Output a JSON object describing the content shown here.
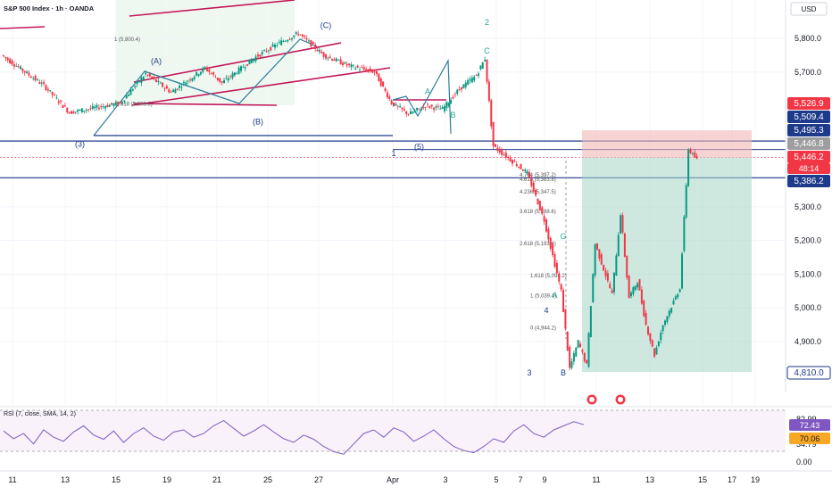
{
  "header": {
    "title": "S&P 500 Index · 1h · OANDA",
    "currency": "USD"
  },
  "colors": {
    "up": "#089981",
    "down": "#f23645",
    "trendline": "#c2185b",
    "hline": "#1e3a8a",
    "wave_label": "#1e3a8a",
    "wave_label_green": "#26a69a",
    "fib": "#4a6fa5",
    "highlight": "#e8f5e9",
    "rsi_line": "#7e57c2",
    "rsi_ma": "#f9a825"
  },
  "chart_data": {
    "type": "candlestick",
    "title": "S&P 500 Index · 1h · OANDA",
    "currency": "USD",
    "y_ticks": [
      5800,
      5700,
      5300,
      5200,
      5100,
      5000,
      4900
    ],
    "y_tick_labels": [
      "5,800.0",
      "5,700.0",
      "5,300.0",
      "5,200.0",
      "5,100.0",
      "5,000.0",
      "4,900.0"
    ],
    "x_tick_labels": [
      "11",
      "13",
      "15",
      "19",
      "21",
      "25",
      "27",
      "Apr",
      "3",
      "5",
      "7",
      "9",
      "11",
      "13",
      "15",
      "17",
      "19"
    ],
    "price_path": [
      [
        0,
        5750
      ],
      [
        5,
        5660
      ],
      [
        8,
        5580
      ],
      [
        14,
        5608
      ],
      [
        17,
        5695
      ],
      [
        20,
        5640
      ],
      [
        24,
        5712
      ],
      [
        26,
        5668
      ],
      [
        30,
        5745
      ],
      [
        33,
        5790
      ],
      [
        35,
        5815
      ],
      [
        38,
        5750
      ],
      [
        41,
        5718
      ],
      [
        44,
        5700
      ],
      [
        46,
        5608
      ],
      [
        48,
        5575
      ],
      [
        50,
        5600
      ],
      [
        52,
        5590
      ],
      [
        54,
        5650
      ],
      [
        56,
        5690
      ],
      [
        57,
        5740
      ],
      [
        58,
        5480
      ],
      [
        62,
        5400
      ],
      [
        64,
        5260
      ],
      [
        66,
        5050
      ],
      [
        67,
        4820
      ],
      [
        68,
        4900
      ],
      [
        69,
        4830
      ],
      [
        70,
        5190
      ],
      [
        72,
        5040
      ],
      [
        73,
        5280
      ],
      [
        74,
        5030
      ],
      [
        75,
        5080
      ],
      [
        76,
        4950
      ],
      [
        77,
        4860
      ],
      [
        78,
        4950
      ],
      [
        80,
        5060
      ],
      [
        81,
        5470
      ],
      [
        82,
        5440
      ]
    ],
    "price_levels": [
      {
        "value": 5526.9,
        "label": "5,526.9",
        "style": "red-badge"
      },
      {
        "value": 5509.4,
        "label": "5,509.4",
        "style": "blue-badge"
      },
      {
        "value": 5495.3,
        "label": "5,495.3",
        "style": "blue-badge"
      },
      {
        "value": 5446.8,
        "label": "5,446.8",
        "style": "gray-badge"
      },
      {
        "value": 5446.2,
        "label": "5,446.2",
        "style": "red-badge"
      },
      {
        "value": 5386.2,
        "label": "5,386.2",
        "style": "blue-badge"
      },
      {
        "value": 4810.0,
        "label": "4,810.0",
        "style": "outline-badge"
      }
    ],
    "countdown": "48:14",
    "position_box": {
      "entry": 5446.2,
      "stop": 5526.9,
      "target": 4810.0
    },
    "wave_labels": [
      {
        "label": "(A)",
        "x": 18,
        "y": 5725
      },
      {
        "label": "(B)",
        "x": 30,
        "y": 5545
      },
      {
        "label": "(C)",
        "x": 38,
        "y": 5830
      },
      {
        "label": "(3)",
        "x": 9,
        "y": 5478
      },
      {
        "label": "(5)",
        "x": 49,
        "y": 5470
      },
      {
        "label": "1",
        "x": 46,
        "y": 5450
      },
      {
        "label": "2",
        "x": 57,
        "y": 5840
      },
      {
        "label": "A",
        "x": 50,
        "y": 5635
      },
      {
        "label": "B",
        "x": 53,
        "y": 5565
      },
      {
        "label": "C",
        "x": 57,
        "y": 5755
      },
      {
        "label": "3",
        "x": 62,
        "y": 4800
      },
      {
        "label": "4",
        "x": 64,
        "y": 4985
      },
      {
        "label": "A",
        "x": 65,
        "y": 5030
      },
      {
        "label": "G",
        "x": 66,
        "y": 5205
      },
      {
        "label": "B",
        "x": 66,
        "y": 4800
      }
    ],
    "fib_labels": [
      {
        "label": "1 (5,800.4)",
        "value": 5800.4
      },
      {
        "label": "1.618 (5,608.6)",
        "value": 5608.6
      },
      {
        "label": "4.764 (5,397.2)",
        "value": 5397.2
      },
      {
        "label": "4.618 (5,383.8)",
        "value": 5383.8
      },
      {
        "label": "4.236 (5,347.5)",
        "value": 5347.5
      },
      {
        "label": "3.618 (5,288.6)",
        "value": 5288.6
      },
      {
        "label": "2.618 (5,193.4)",
        "value": 5193.4
      },
      {
        "label": "1.618 (5,098.2)",
        "value": 5098.2
      },
      {
        "label": "1 (5,039.4)",
        "value": 5039.4
      },
      {
        "label": "0 (4,944.2)",
        "value": 4944.2
      }
    ],
    "rsi": {
      "title": "RSI (7, close, SMA, 14, 2)",
      "y_tick_labels": [
        "82.99",
        "34.79",
        "0.00"
      ],
      "current": "72.43",
      "ma_current": "70.06",
      "values": [
        60,
        45,
        55,
        35,
        62,
        48,
        40,
        58,
        70,
        52,
        44,
        60,
        38,
        55,
        66,
        50,
        42,
        58,
        62,
        48,
        55,
        70,
        80,
        65,
        50,
        60,
        72,
        58,
        45,
        38,
        52,
        44,
        30,
        20,
        15,
        35,
        55,
        62,
        48,
        66,
        58,
        40,
        50,
        62,
        45,
        30,
        22,
        18,
        30,
        45,
        38,
        60,
        72,
        55,
        48,
        62,
        70,
        78,
        72
      ]
    }
  }
}
